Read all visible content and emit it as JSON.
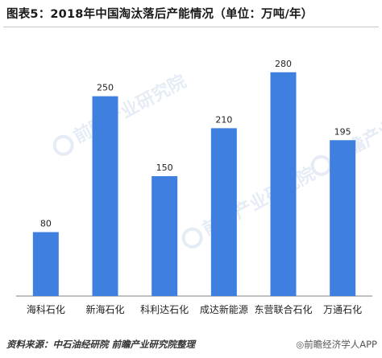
{
  "title": "图表5：2018年中国淘汰落后产能情况（单位：万吨/年）",
  "source_text": "资料来源：中石油经研院 前瞻产业研究院整理",
  "footer_mark": "◎前瞻经济学人APP",
  "watermark_text": "前瞻产业研究院",
  "colors": {
    "bar": "#3f7fe0",
    "baseline": "#7f7f7f",
    "watermark": "#b7cbe6"
  },
  "chart_data": {
    "type": "bar",
    "categories": [
      "海科石化",
      "新海石化",
      "科利达石化",
      "成达新能源",
      "东营联合石化",
      "万通石化"
    ],
    "values": [
      80,
      250,
      150,
      210,
      280,
      195
    ],
    "data_labels": [
      "80",
      "250",
      "150",
      "210",
      "280",
      "195"
    ],
    "ylim": [
      0,
      310
    ],
    "grid": false,
    "legend": "none"
  }
}
